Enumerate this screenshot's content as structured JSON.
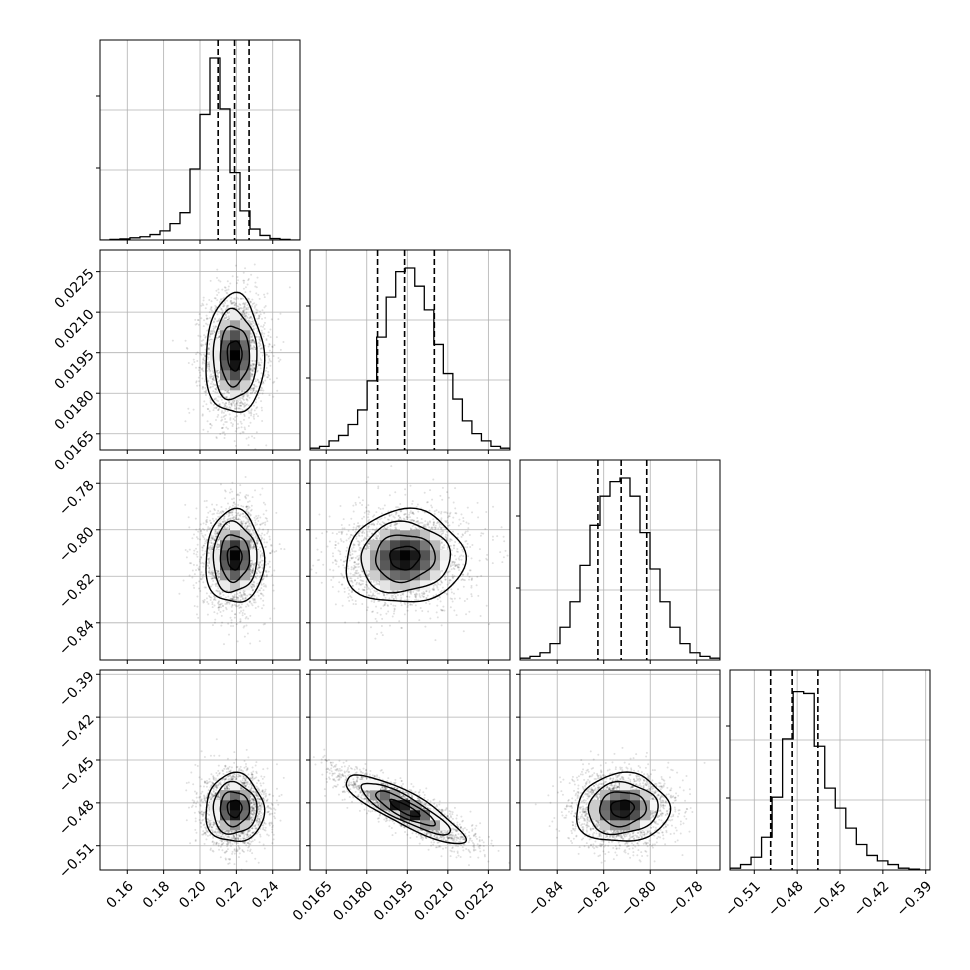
{
  "chart_data": {
    "type": "corner",
    "description_free": true,
    "grid": true,
    "params": [
      {
        "ticks": [
          0.16,
          0.18,
          0.2,
          0.22,
          0.24
        ],
        "tick_labels": [
          "0.16",
          "0.18",
          "0.20",
          "0.22",
          "0.24"
        ],
        "range": [
          0.145,
          0.255
        ],
        "quantiles": [
          0.21,
          0.219,
          0.227
        ],
        "hist": [
          0.0,
          0.003,
          0.006,
          0.012,
          0.018,
          0.03,
          0.05,
          0.09,
          0.15,
          0.39,
          0.69,
          1.0,
          0.72,
          0.37,
          0.16,
          0.06,
          0.025,
          0.008,
          0.003,
          0.0
        ],
        "hist_range": [
          0.145,
          0.255
        ],
        "mode": 0.219,
        "sigma": 0.008
      },
      {
        "ticks": [
          0.0165,
          0.018,
          0.0195,
          0.021,
          0.0225
        ],
        "tick_labels": [
          "0.0165",
          "0.0180",
          "0.0195",
          "0.0210",
          "0.0225"
        ],
        "range": [
          0.0159,
          0.0233
        ],
        "quantiles": [
          0.0184,
          0.0194,
          0.0205
        ],
        "hist": [
          0.01,
          0.02,
          0.05,
          0.08,
          0.14,
          0.22,
          0.38,
          0.62,
          0.84,
          0.98,
          1.0,
          0.9,
          0.77,
          0.58,
          0.42,
          0.28,
          0.16,
          0.09,
          0.05,
          0.02,
          0.01
        ],
        "hist_range": [
          0.0159,
          0.0233
        ],
        "mode": 0.0194,
        "sigma": 0.0011
      },
      {
        "ticks": [
          -0.84,
          -0.82,
          -0.8,
          -0.78
        ],
        "tick_labels": [
          "−0.84",
          "−0.82",
          "−0.80",
          "−0.78"
        ],
        "range": [
          -0.856,
          -0.77
        ],
        "quantiles": [
          -0.8225,
          -0.8125,
          -0.8015
        ],
        "hist": [
          0.01,
          0.02,
          0.04,
          0.09,
          0.18,
          0.32,
          0.52,
          0.74,
          0.9,
          0.98,
          1.0,
          0.9,
          0.7,
          0.5,
          0.32,
          0.18,
          0.09,
          0.04,
          0.02,
          0.01
        ],
        "hist_range": [
          -0.856,
          -0.77
        ],
        "mode": -0.812,
        "sigma": 0.01
      },
      {
        "ticks": [
          -0.51,
          -0.48,
          -0.45,
          -0.42,
          -0.39
        ],
        "tick_labels": [
          "−0.51",
          "−0.48",
          "−0.45",
          "−0.42",
          "−0.39"
        ],
        "range": [
          -0.527,
          -0.387
        ],
        "quantiles": [
          -0.4985,
          -0.4835,
          -0.4655
        ],
        "hist": [
          0.01,
          0.03,
          0.07,
          0.18,
          0.4,
          0.72,
          0.98,
          0.97,
          0.68,
          0.45,
          0.34,
          0.23,
          0.14,
          0.08,
          0.05,
          0.03,
          0.01,
          0.005,
          0.0
        ],
        "hist_range": [
          -0.527,
          -0.387
        ],
        "mode": -0.484,
        "sigma": 0.012
      }
    ],
    "correlations": [
      [
        1.0,
        0.0,
        0.0,
        0.0
      ],
      [
        0.0,
        1.0,
        0.05,
        -0.85
      ],
      [
        0.0,
        0.05,
        1.0,
        0.05
      ],
      [
        0.0,
        -0.85,
        0.05,
        1.0
      ]
    ],
    "contour_levels": [
      0.5,
      1.0,
      1.5,
      2.0
    ]
  }
}
